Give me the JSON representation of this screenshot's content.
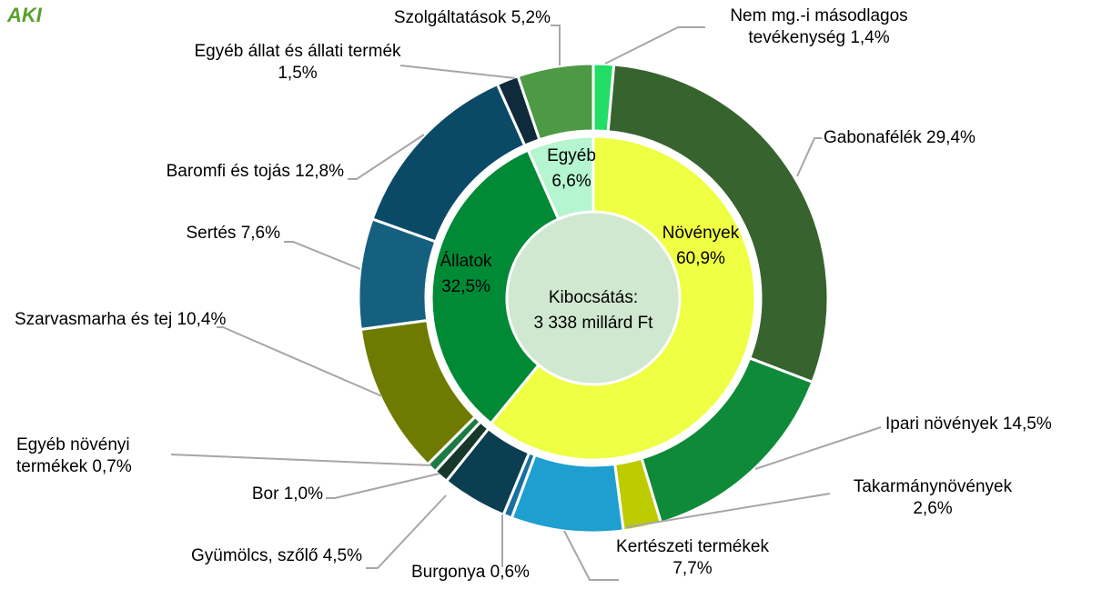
{
  "logo": "AKI",
  "chart_data": {
    "type": "donut",
    "center_text": [
      "Kibocsátás:",
      "3 338 millárd Ft"
    ],
    "inner": {
      "categories": [
        "Növények",
        "Állatok",
        "Egyéb"
      ],
      "values": [
        60.9,
        32.5,
        6.6
      ],
      "value_labels": [
        "60,9%",
        "32,5%",
        "6,6%"
      ],
      "colors": [
        "#eeff44",
        "#008a36",
        "#b5f5cf"
      ]
    },
    "outer": {
      "categories": [
        "Nem mg.-i másodlagos tevékenység",
        "Gabonafélék",
        "Ipari növények",
        "Takarmánynövények",
        "Kertészeti termékek",
        "Burgonya",
        "Gyümölcs, szőlő",
        "Bor",
        "Egyéb növényi termékek",
        "Szarvasmarha és tej",
        "Sertés",
        "Baromfi és tojás",
        "Egyéb állat és állati termék",
        "Szolgáltatások"
      ],
      "values": [
        1.4,
        29.4,
        14.5,
        2.6,
        7.7,
        0.6,
        4.5,
        1.0,
        0.7,
        10.4,
        7.6,
        12.8,
        1.5,
        5.2
      ],
      "value_labels": [
        "1,4%",
        "29,4%",
        "14,5%",
        "2,6%",
        "7,7%",
        "0,6%",
        "4,5%",
        "1,0%",
        "0,7%",
        "10,4%",
        "7,6%",
        "12,8%",
        "1,5%",
        "5,2%"
      ],
      "colors": [
        "#22dd66",
        "#37632f",
        "#0f8a38",
        "#bccc00",
        "#1e9fd0",
        "#1a6fa0",
        "#0c3e52",
        "#17372a",
        "#1e7a44",
        "#6e7b00",
        "#15607f",
        "#0b4a66",
        "#0f2a3a",
        "#4d9944"
      ]
    }
  }
}
